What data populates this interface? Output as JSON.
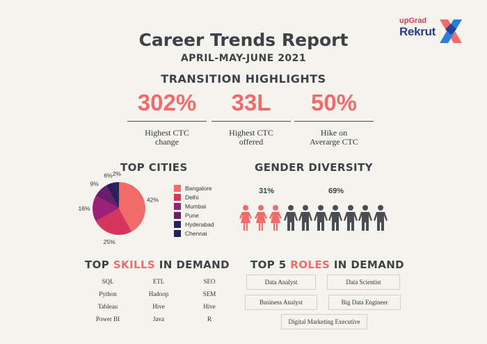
{
  "brand": {
    "small": "upGrad",
    "big": "Rekrut"
  },
  "header": {
    "title": "Career Trends Report",
    "subtitle": "APRIL-MAY-JUNE 2021"
  },
  "highlights": {
    "title": "TRANSITION HIGHLIGHTS",
    "items": [
      {
        "value": "302%",
        "label": "Highest CTC\nchange"
      },
      {
        "value": "33L",
        "label": "Highest CTC\noffered"
      },
      {
        "value": "50%",
        "label": "Hike on\nAverarge  CTC"
      }
    ]
  },
  "cities": {
    "title": "TOP CITIES"
  },
  "gender": {
    "title": "GENDER DIVERSITY",
    "female_label": "31%",
    "male_label": "69%",
    "female_fraction": 0.31,
    "icons_total": 10,
    "icons_female": 3,
    "colors": {
      "female": "#f26b6b",
      "male": "#4a4d52"
    }
  },
  "skills": {
    "title_pre": "TOP",
    "title_accent": "SKILLS",
    "title_post": "IN DEMAND",
    "grid": [
      [
        "SQL",
        "ETL",
        "SEO"
      ],
      [
        "Python",
        "Hadoop",
        "SEM"
      ],
      [
        "Tableau",
        "Hive",
        "Hive"
      ],
      [
        "Power BI",
        "Java",
        "R"
      ]
    ]
  },
  "roles": {
    "title_pre": "TOP 5",
    "title_accent": "ROLES",
    "title_post": "IN DEMAND",
    "items": [
      "Data Analyst",
      "Data Scientist",
      "Business Analyst",
      "Big Data Engineer",
      "Digital Marketing Executive"
    ]
  },
  "chart_data": {
    "type": "pie",
    "title": "TOP CITIES",
    "categories": [
      "Bangalore",
      "Delhi",
      "Mumbai",
      "Pune",
      "Hyderabad",
      "Chennai"
    ],
    "values": [
      42,
      25,
      16,
      9,
      6,
      2
    ],
    "labels": [
      "42%",
      "25%",
      "16%",
      "9%",
      "6%",
      "2%"
    ],
    "colors": [
      "#f26b6b",
      "#d6355e",
      "#9c1f78",
      "#6b1e6b",
      "#2e1d5c",
      "#1f2454"
    ],
    "legend": "right"
  }
}
